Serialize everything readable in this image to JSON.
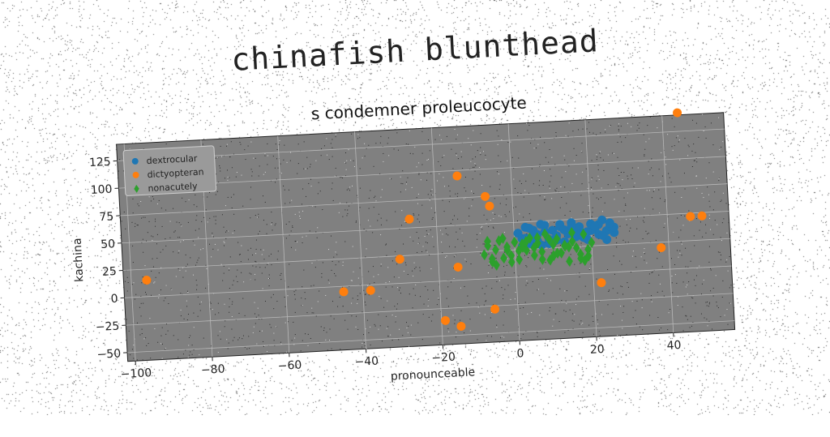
{
  "page_title": "chinafish blunthead",
  "chart_data": {
    "type": "scatter",
    "title": "s condemner proleucocyte",
    "xlabel": "pronounceable",
    "ylabel": "kachina",
    "xlim": [
      -102,
      56
    ],
    "ylim": [
      -58,
      140
    ],
    "xticks": [
      -100,
      -80,
      -60,
      -40,
      -20,
      0,
      20,
      40
    ],
    "xtick_labels": [
      "−100",
      "−80",
      "−60",
      "−40",
      "−20",
      "0",
      "20",
      "40"
    ],
    "yticks": [
      -50,
      -25,
      0,
      25,
      50,
      75,
      100,
      125
    ],
    "ytick_labels": [
      "−50",
      "−25",
      "0",
      "25",
      "50",
      "75",
      "100",
      "125"
    ],
    "grid": true,
    "legend_position": "top-left",
    "series": [
      {
        "name": "dextrocular",
        "marker": "circle",
        "color": "#1f77b4",
        "x": [
          1,
          2,
          3,
          4,
          5,
          6,
          7,
          8,
          9,
          10,
          11,
          12,
          13,
          14,
          15,
          16,
          17,
          18,
          19,
          20,
          21,
          22,
          23,
          24,
          25,
          26,
          2,
          4,
          6,
          8,
          10,
          12,
          14,
          16,
          18,
          20,
          22,
          24,
          26,
          3,
          7,
          11,
          15,
          19,
          23,
          25,
          5,
          9,
          13,
          17,
          21
        ],
        "y": [
          40,
          35,
          45,
          30,
          42,
          38,
          28,
          46,
          33,
          41,
          36,
          44,
          30,
          39,
          47,
          34,
          43,
          37,
          31,
          45,
          40,
          35,
          48,
          38,
          42,
          36,
          28,
          44,
          32,
          40,
          30,
          46,
          37,
          42,
          33,
          39,
          44,
          30,
          41,
          35,
          47,
          32,
          44,
          38,
          34,
          45,
          37,
          29,
          41,
          36,
          43
        ]
      },
      {
        "name": "dictyopteran",
        "marker": "circle",
        "color": "#ff7f0e",
        "x": [
          -96,
          -45,
          -38,
          -30,
          -27,
          -19,
          -15,
          -15,
          -14,
          -7,
          -6,
          -6,
          22,
          38,
          44,
          46,
          49
        ],
        "y": [
          15,
          -5,
          -5,
          22,
          58,
          -36,
          -42,
          12,
          95,
          75,
          66,
          -28,
          -9,
          20,
          142,
          47,
          47
        ]
      },
      {
        "name": "nonacutely",
        "marker": "diamond",
        "color": "#2ca02c",
        "x": [
          -8,
          -7,
          -6,
          -5,
          -4,
          -3,
          -2,
          -1,
          0,
          1,
          2,
          3,
          4,
          5,
          6,
          7,
          8,
          9,
          10,
          11,
          12,
          13,
          14,
          15,
          16,
          17,
          18,
          19,
          20,
          -7,
          -5,
          -3,
          -1,
          1,
          3,
          5,
          7,
          9,
          11,
          13,
          15,
          17,
          19,
          -6,
          -2,
          2,
          6,
          10,
          14,
          18
        ],
        "y": [
          22,
          30,
          15,
          26,
          34,
          18,
          28,
          20,
          32,
          16,
          27,
          24,
          35,
          19,
          30,
          22,
          38,
          14,
          28,
          33,
          20,
          26,
          12,
          30,
          24,
          18,
          36,
          16,
          28,
          34,
          12,
          36,
          14,
          24,
          32,
          26,
          15,
          33,
          20,
          27,
          38,
          14,
          22,
          18,
          25,
          30,
          35,
          18,
          25,
          12
        ]
      }
    ]
  }
}
